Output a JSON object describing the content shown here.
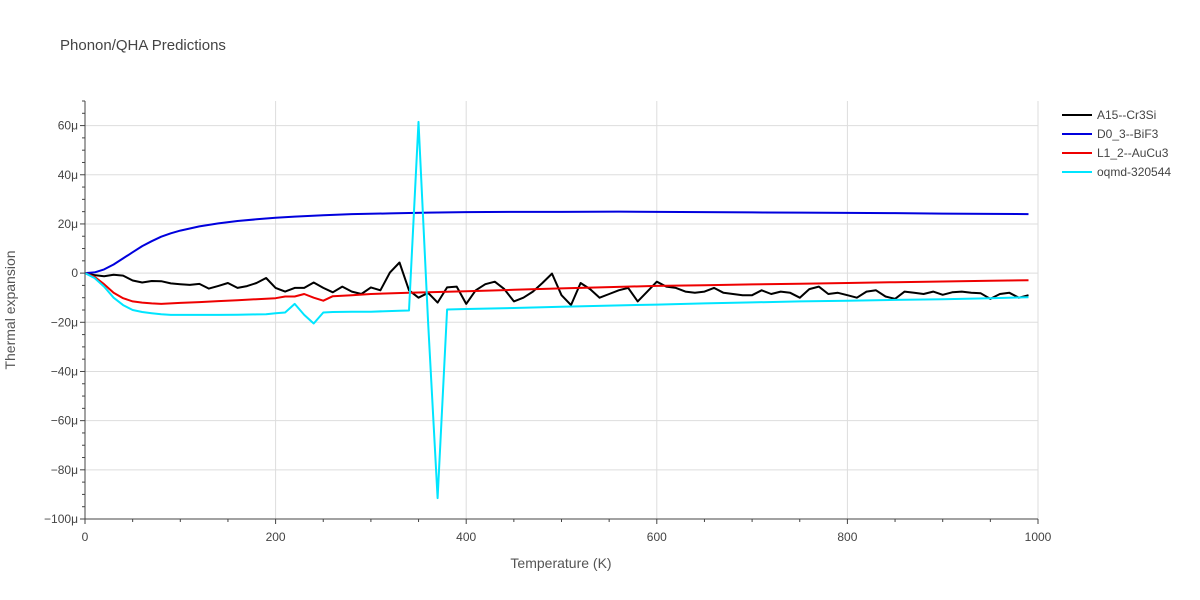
{
  "chart_data": {
    "type": "line",
    "title": "Phonon/QHA Predictions",
    "xlabel": "Temperature (K)",
    "ylabel": "Thermal expansion",
    "xlim": [
      0,
      1000
    ],
    "ylim": [
      -100,
      70
    ],
    "y_unit_note": "values in units of 1e-6",
    "x_ticks": [
      0,
      200,
      400,
      600,
      800,
      1000
    ],
    "x_tick_labels": [
      "0",
      "200",
      "400",
      "600",
      "800",
      "1000"
    ],
    "y_ticks": [
      -100,
      -80,
      -60,
      -40,
      -20,
      0,
      20,
      40,
      60
    ],
    "y_tick_labels": [
      "−100μ",
      "−80μ",
      "−60μ",
      "−40μ",
      "−20μ",
      "0",
      "20μ",
      "40μ",
      "60μ"
    ],
    "grid": true,
    "legend_position": "top-right",
    "series": [
      {
        "name": "A15--Cr3Si",
        "color": "#000000",
        "x": [
          0,
          10,
          20,
          30,
          40,
          50,
          60,
          70,
          80,
          90,
          100,
          110,
          120,
          130,
          140,
          150,
          160,
          170,
          180,
          190,
          200,
          210,
          220,
          230,
          240,
          250,
          260,
          270,
          280,
          290,
          300,
          310,
          320,
          330,
          340,
          350,
          360,
          370,
          380,
          390,
          400,
          410,
          420,
          430,
          440,
          450,
          460,
          470,
          480,
          490,
          500,
          510,
          520,
          530,
          540,
          550,
          560,
          570,
          580,
          590,
          600,
          610,
          620,
          630,
          640,
          650,
          660,
          670,
          680,
          690,
          700,
          710,
          720,
          730,
          740,
          750,
          760,
          770,
          780,
          790,
          800,
          810,
          820,
          830,
          840,
          850,
          860,
          870,
          880,
          890,
          900,
          910,
          920,
          930,
          940,
          950,
          960,
          970,
          980,
          990
        ],
        "y": [
          0,
          -0.8,
          -1.3,
          -0.7,
          -1,
          -3,
          -3.8,
          -3.2,
          -3.3,
          -4.2,
          -4.5,
          -4.8,
          -4.4,
          -6.3,
          -5.2,
          -4,
          -6,
          -5.3,
          -4,
          -2,
          -6,
          -7.5,
          -6,
          -6,
          -3.8,
          -6,
          -7.8,
          -5.5,
          -7.5,
          -8.5,
          -5.8,
          -7,
          0.3,
          4.3,
          -7,
          -10,
          -8,
          -12,
          -5.8,
          -5.5,
          -12.5,
          -7,
          -4.5,
          -3.5,
          -6.5,
          -11.5,
          -10,
          -7.5,
          -4,
          -0.2,
          -9,
          -13,
          -4,
          -6.5,
          -10,
          -8.5,
          -7,
          -6,
          -11.5,
          -7.5,
          -3.5,
          -5.5,
          -6,
          -7.5,
          -8,
          -7.5,
          -6,
          -8,
          -8.5,
          -9,
          -9,
          -7,
          -8.5,
          -7.5,
          -8,
          -10,
          -6.5,
          -5.5,
          -8.5,
          -8,
          -9,
          -10,
          -7.5,
          -7,
          -9.5,
          -10.5,
          -7.5,
          -8,
          -8.5,
          -7.5,
          -8.8,
          -7.8,
          -7.5,
          -8,
          -8.2,
          -10.5,
          -8.5,
          -8,
          -10,
          -9
        ]
      },
      {
        "name": "D0_3--BiF3",
        "color": "#0000dd",
        "x": [
          0,
          10,
          20,
          30,
          40,
          50,
          60,
          70,
          80,
          90,
          100,
          120,
          140,
          160,
          180,
          200,
          220,
          250,
          280,
          320,
          360,
          400,
          450,
          500,
          560,
          600,
          650,
          700,
          750,
          800,
          850,
          900,
          950,
          990
        ],
        "y": [
          0,
          0.3,
          1.5,
          3.5,
          6,
          8.5,
          11,
          13,
          14.8,
          16.2,
          17.3,
          19,
          20.2,
          21.2,
          21.9,
          22.5,
          23,
          23.5,
          24,
          24.3,
          24.6,
          24.8,
          24.9,
          24.9,
          25,
          24.9,
          24.8,
          24.7,
          24.6,
          24.5,
          24.4,
          24.2,
          24.1,
          24
        ]
      },
      {
        "name": "L1_2--AuCu3",
        "color": "#ee0000",
        "x": [
          0,
          10,
          20,
          30,
          40,
          50,
          60,
          70,
          80,
          90,
          100,
          120,
          140,
          160,
          180,
          200,
          210,
          220,
          230,
          240,
          250,
          260,
          280,
          300,
          340,
          400,
          450,
          500,
          550,
          600,
          650,
          700,
          750,
          800,
          850,
          900,
          950,
          990
        ],
        "y": [
          0,
          -1.5,
          -4.5,
          -8,
          -10.2,
          -11.5,
          -12,
          -12.3,
          -12.5,
          -12.3,
          -12.1,
          -11.8,
          -11.4,
          -11,
          -10.6,
          -10.2,
          -9.5,
          -9.5,
          -8.5,
          -10,
          -11.2,
          -9.4,
          -9,
          -8.5,
          -8,
          -7.4,
          -6.8,
          -6.2,
          -5.7,
          -5.2,
          -4.9,
          -4.6,
          -4.3,
          -4,
          -3.7,
          -3.4,
          -3.1,
          -2.9
        ]
      },
      {
        "name": "oqmd-320544",
        "color": "#00e5ff",
        "x": [
          0,
          10,
          20,
          30,
          40,
          50,
          60,
          70,
          80,
          90,
          100,
          120,
          140,
          160,
          180,
          190,
          200,
          210,
          220,
          230,
          240,
          250,
          260,
          280,
          300,
          330,
          340,
          350,
          360,
          370,
          380,
          390,
          400,
          450,
          500,
          550,
          600,
          650,
          700,
          750,
          800,
          850,
          900,
          950,
          990
        ],
        "y": [
          0,
          -2,
          -5.5,
          -10,
          -13,
          -15,
          -15.8,
          -16.3,
          -16.7,
          -17,
          -17,
          -17,
          -17,
          -16.9,
          -16.8,
          -16.7,
          -16.3,
          -16,
          -12.5,
          -17,
          -20.5,
          -16,
          -15.8,
          -15.7,
          -15.7,
          -15.3,
          -15.2,
          61.5,
          -20,
          -91.5,
          -14.8,
          -14.7,
          -14.6,
          -14.2,
          -13.7,
          -13.2,
          -12.8,
          -12.3,
          -11.9,
          -11.5,
          -11.2,
          -10.9,
          -10.6,
          -10.2,
          -9.8
        ]
      }
    ]
  }
}
